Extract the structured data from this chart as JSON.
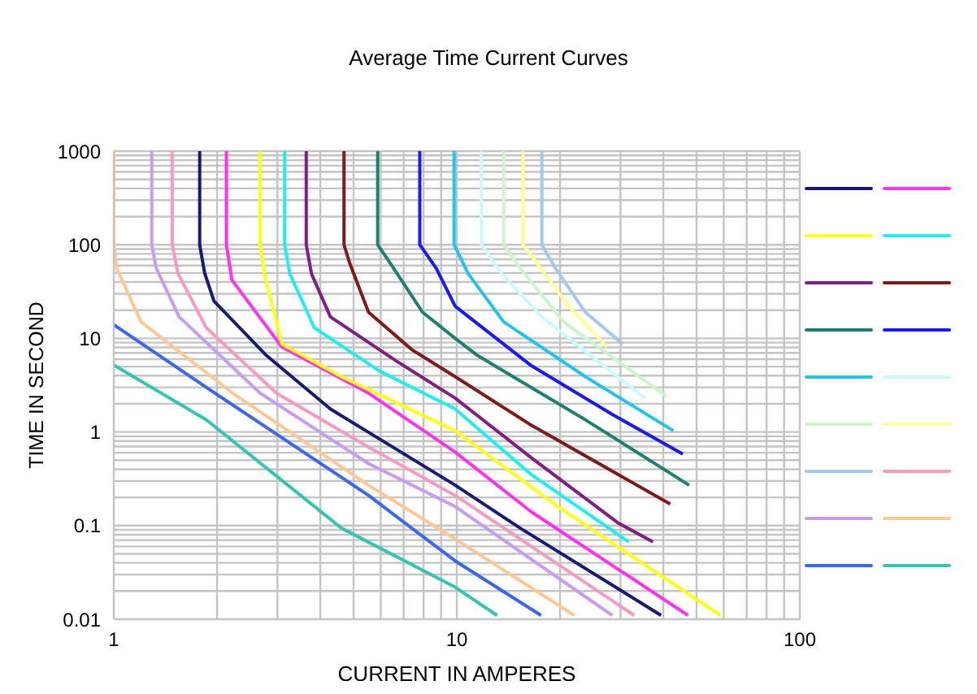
{
  "chart_data": {
    "type": "line",
    "title": "Average Time Current Curves",
    "xlabel": "CURRENT IN AMPERES",
    "ylabel": "TIME IN SECOND",
    "log": "xy",
    "grid": true,
    "marker": "none",
    "line_style": "solid",
    "xlim": [
      1,
      100
    ],
    "xticks": [
      1,
      {
        "value": 2,
        "label": null
      },
      {
        "value": 3,
        "label": null
      },
      {
        "value": 4,
        "label": null
      },
      {
        "value": 5,
        "label": null
      },
      {
        "value": 6,
        "label": null
      },
      {
        "value": 7,
        "label": null
      },
      {
        "value": 8,
        "label": null
      },
      {
        "value": 9,
        "label": null
      },
      10,
      {
        "value": 20,
        "label": null
      },
      {
        "value": 30,
        "label": null
      },
      {
        "value": 40,
        "label": null
      },
      {
        "value": 50,
        "label": null
      },
      {
        "value": 60,
        "label": null
      },
      {
        "value": 70,
        "label": null
      },
      {
        "value": 80,
        "label": null
      },
      {
        "value": 90,
        "label": null
      },
      100
    ],
    "ylim": [
      0.01,
      1000
    ],
    "yticks": [
      0.01,
      {
        "value": 0.02,
        "label": null
      },
      {
        "value": 0.03,
        "label": null
      },
      {
        "value": 0.04,
        "label": null
      },
      {
        "value": 0.05,
        "label": null
      },
      {
        "value": 0.06,
        "label": null
      },
      {
        "value": 0.07,
        "label": null
      },
      {
        "value": 0.08,
        "label": null
      },
      {
        "value": 0.09,
        "label": null
      },
      0.1,
      {
        "value": 0.2,
        "label": null
      },
      {
        "value": 0.3,
        "label": null
      },
      {
        "value": 0.4,
        "label": null
      },
      {
        "value": 0.5,
        "label": null
      },
      {
        "value": 0.6,
        "label": null
      },
      {
        "value": 0.7,
        "label": null
      },
      {
        "value": 0.8,
        "label": null
      },
      {
        "value": 0.9,
        "label": null
      },
      1,
      {
        "value": 2,
        "label": null
      },
      {
        "value": 3,
        "label": null
      },
      {
        "value": 4,
        "label": null
      },
      {
        "value": 5,
        "label": null
      },
      {
        "value": 6,
        "label": null
      },
      {
        "value": 7,
        "label": null
      },
      {
        "value": 8,
        "label": null
      },
      {
        "value": 9,
        "label": null
      },
      10,
      {
        "value": 20,
        "label": null
      },
      {
        "value": 30,
        "label": null
      },
      {
        "value": 40,
        "label": null
      },
      {
        "value": 50,
        "label": null
      },
      {
        "value": 60,
        "label": null
      },
      {
        "value": 70,
        "label": null
      },
      {
        "value": 80,
        "label": null
      },
      {
        "value": 90,
        "label": null
      },
      100,
      {
        "value": 200,
        "label": null
      },
      {
        "value": 300,
        "label": null
      },
      {
        "value": 400,
        "label": null
      },
      {
        "value": 500,
        "label": null
      },
      {
        "value": 600,
        "label": null
      },
      {
        "value": 700,
        "label": null
      },
      {
        "value": 800,
        "label": null
      },
      {
        "value": 900,
        "label": null
      },
      1000
    ],
    "series": [
      {
        "color": "#1a1a75",
        "x": [
          1.78,
          1.78,
          1.84,
          1.96,
          2.77,
          4.28,
          9.9,
          15.3,
          39.4
        ],
        "values": [
          1000,
          100,
          50,
          25,
          6.7,
          1.76,
          0.27,
          0.094,
          0.011
        ]
      },
      {
        "color": "#ff33ee",
        "x": [
          2.13,
          2.13,
          2.21,
          3.09,
          5.53,
          9.89,
          16.5,
          47.2
        ],
        "values": [
          1000,
          100,
          42,
          8.1,
          2.6,
          0.61,
          0.14,
          0.011
        ]
      },
      {
        "color": "#ffff1a",
        "x": [
          2.67,
          2.67,
          2.77,
          3.09,
          4.61,
          9.89,
          19.7,
          58.7
        ],
        "values": [
          1000,
          100,
          43,
          8.7,
          3.9,
          1.03,
          0.16,
          0.011
        ]
      },
      {
        "color": "#22eeee",
        "x": [
          3.15,
          3.15,
          3.26,
          3.84,
          5.94,
          9.89,
          16.5,
          31.7
        ],
        "values": [
          1000,
          100,
          49,
          13,
          4.5,
          1.76,
          0.35,
          0.067
        ]
      },
      {
        "color": "#7f1f7f",
        "x": [
          3.64,
          3.64,
          3.77,
          4.28,
          6.63,
          9.89,
          16.5,
          29.5,
          37.3
        ],
        "values": [
          1000,
          100,
          49,
          17,
          5.8,
          2.3,
          0.53,
          0.107,
          0.067
        ]
      },
      {
        "color": "#7f1a1a",
        "x": [
          4.69,
          4.69,
          4.87,
          5.53,
          7.39,
          9.89,
          16.5,
          41.9
        ],
        "values": [
          1000,
          100,
          64,
          19,
          7.6,
          3.9,
          1.18,
          0.17
        ]
      },
      {
        "color": "#1f8070",
        "x": [
          5.88,
          5.88,
          6.39,
          7.95,
          9.89,
          11.4,
          23.7,
          47.6
        ],
        "values": [
          1000,
          100,
          64,
          19,
          10,
          6.7,
          1.35,
          0.27
        ]
      },
      {
        "color": "#1a1aee",
        "x": [
          7.8,
          7.8,
          8.71,
          9.89,
          16.5,
          28.4,
          45.6
        ],
        "values": [
          1000,
          100,
          56,
          22,
          5.1,
          1.54,
          0.58
        ]
      },
      {
        "color": "#22c4ee",
        "x": [
          9.82,
          9.82,
          10.8,
          13.7,
          23.7,
          42.8
        ],
        "values": [
          1000,
          100,
          49,
          15,
          3.9,
          1.03
        ]
      },
      {
        "color": "#ccfafa",
        "x": [
          11.8,
          11.8,
          13.5,
          17.7,
          35.3
        ],
        "values": [
          1000,
          100,
          49,
          17,
          2.3
        ]
      },
      {
        "color": "#ccf5cc",
        "x": [
          13.7,
          13.7,
          15.3,
          20.5,
          40.9
        ],
        "values": [
          1000,
          100,
          56,
          15,
          2.4
        ]
      },
      {
        "color": "#ffff99",
        "x": [
          15.6,
          15.6,
          17.1,
          21.2,
          27.4
        ],
        "values": [
          1000,
          100,
          64,
          22,
          8.1
        ]
      },
      {
        "color": "#a6c8f0",
        "x": [
          17.7,
          17.7,
          19.4,
          23.7,
          30.5
        ],
        "values": [
          1000,
          100,
          56,
          19,
          8.7
        ]
      },
      {
        "color": "#f59ac0",
        "x": [
          1.48,
          1.48,
          1.54,
          1.86,
          2.98,
          5.53,
          9.89,
          32.9
        ],
        "values": [
          1000,
          100,
          49,
          13,
          2.6,
          0.69,
          0.21,
          0.011
        ]
      },
      {
        "color": "#c89cf0",
        "x": [
          1.29,
          1.29,
          1.33,
          1.55,
          2.67,
          5.53,
          9.89,
          28.4
        ],
        "values": [
          1000,
          100,
          56,
          17,
          2.6,
          0.46,
          0.16,
          0.011
        ]
      },
      {
        "color": "#fcc896",
        "x": [
          1,
          1,
          1.02,
          1.2,
          2.22,
          5.53,
          9.89,
          22
        ],
        "values": [
          1000,
          100,
          56,
          15,
          2.6,
          0.27,
          0.072,
          0.011
        ]
      },
      {
        "color": "#3d66ee",
        "x": [
          1,
          1.86,
          5.53,
          9.89,
          17.6
        ],
        "values": [
          14,
          3,
          0.21,
          0.042,
          0.011
        ]
      },
      {
        "color": "#33c4b4",
        "x": [
          1,
          1.86,
          4.61,
          9.89,
          13.1
        ],
        "values": [
          5.2,
          1.35,
          0.094,
          0.022,
          0.011
        ]
      }
    ]
  }
}
